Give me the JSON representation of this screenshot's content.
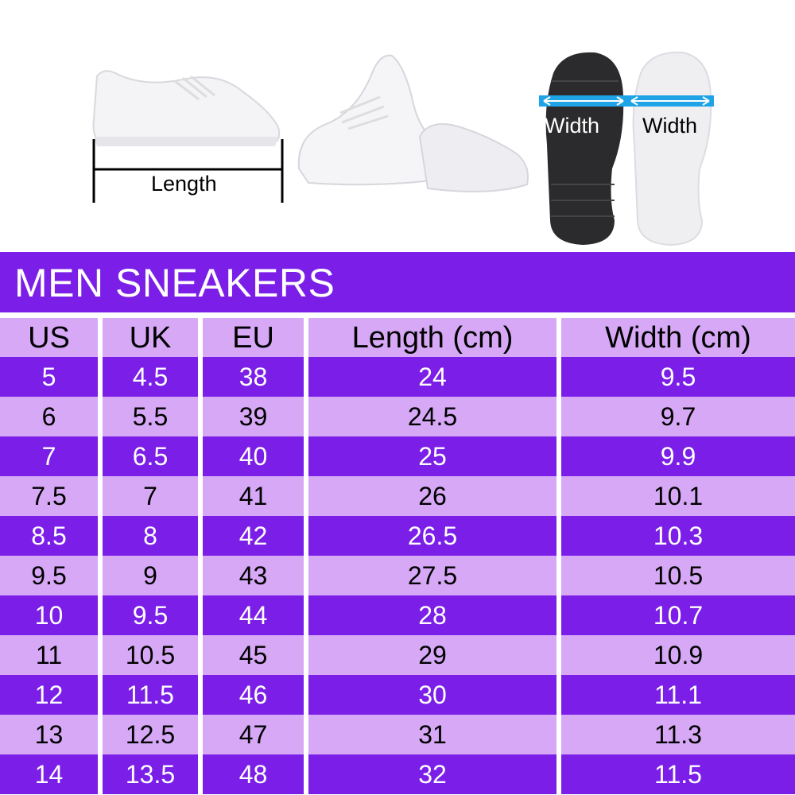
{
  "images": {
    "length_label": "Length",
    "width_label_black": "Width",
    "width_label_white": "Width"
  },
  "title": "MEN SNEAKERS",
  "colors": {
    "dark_purple": "#7b1fe8",
    "light_purple": "#d6a8f6",
    "arrow_blue": "#1ea3e6"
  },
  "chart_data": {
    "type": "table",
    "title": "MEN SNEAKERS",
    "columns": [
      "US",
      "UK",
      "EU",
      "Length (cm)",
      "Width (cm)"
    ],
    "rows": [
      [
        "5",
        "4.5",
        "38",
        "24",
        "9.5"
      ],
      [
        "6",
        "5.5",
        "39",
        "24.5",
        "9.7"
      ],
      [
        "7",
        "6.5",
        "40",
        "25",
        "9.9"
      ],
      [
        "7.5",
        "7",
        "41",
        "26",
        "10.1"
      ],
      [
        "8.5",
        "8",
        "42",
        "26.5",
        "10.3"
      ],
      [
        "9.5",
        "9",
        "43",
        "27.5",
        "10.5"
      ],
      [
        "10",
        "9.5",
        "44",
        "28",
        "10.7"
      ],
      [
        "11",
        "10.5",
        "45",
        "29",
        "10.9"
      ],
      [
        "12",
        "11.5",
        "46",
        "30",
        "11.1"
      ],
      [
        "13",
        "12.5",
        "47",
        "31",
        "11.3"
      ],
      [
        "14",
        "13.5",
        "48",
        "32",
        "11.5"
      ]
    ]
  }
}
